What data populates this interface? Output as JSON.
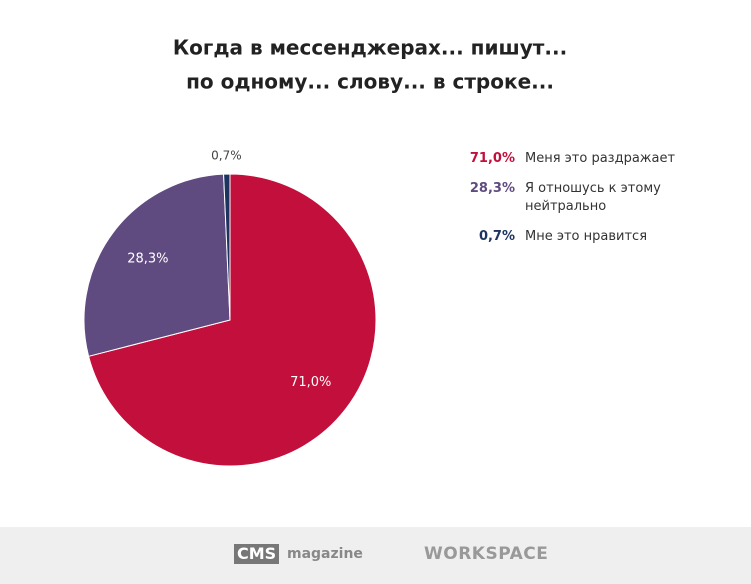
{
  "chart_data": {
    "type": "pie",
    "title": [
      "Когда в мессенджерах... пишут...",
      "по одному... слову... в строке..."
    ],
    "categories": [
      "Меня это раздражает",
      "Я отношусь к этому нейтрально",
      "Мне это нравится"
    ],
    "values": [
      71.0,
      28.3,
      0.7
    ],
    "value_labels": [
      "71,0%",
      "28,3%",
      "0,7%"
    ],
    "colors": [
      "#c20f3b",
      "#5f4b7f",
      "#1d3461"
    ],
    "legend": "right"
  },
  "footer": {
    "logos": [
      "CMS",
      "magazine",
      "WORKSPACE"
    ]
  }
}
